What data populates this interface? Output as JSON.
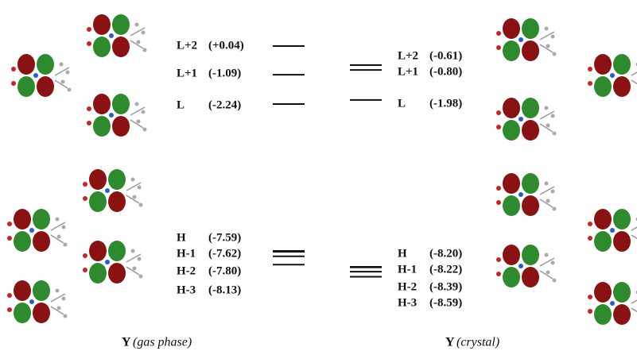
{
  "panels": [
    {
      "caption": {
        "symbol": "Y",
        "phase": "(gas phase)"
      },
      "lumo": [
        {
          "label": "L+2",
          "energy": 0.04,
          "energy_label": "(+0.04)"
        },
        {
          "label": "L+1",
          "energy": -1.09,
          "energy_label": "(-1.09)"
        },
        {
          "label": "L",
          "energy": -2.24,
          "energy_label": "(-2.24)"
        }
      ],
      "homo": [
        {
          "label": "H",
          "energy": -7.59,
          "energy_label": "(-7.59)"
        },
        {
          "label": "H-1",
          "energy": -7.62,
          "energy_label": "(-7.62)"
        },
        {
          "label": "H-2",
          "energy": -7.8,
          "energy_label": "(-7.80)"
        },
        {
          "label": "H-3",
          "energy": -8.13,
          "energy_label": "(-8.13)"
        }
      ]
    },
    {
      "caption": {
        "symbol": "Y",
        "phase": "(crystal)"
      },
      "lumo": [
        {
          "label": "L+2",
          "energy": -0.61,
          "energy_label": "(-0.61)"
        },
        {
          "label": "L+1",
          "energy": -0.8,
          "energy_label": "(-0.80)"
        },
        {
          "label": "L",
          "energy": -1.98,
          "energy_label": "(-1.98)"
        }
      ],
      "homo": [
        {
          "label": "H",
          "energy": -8.2,
          "energy_label": "(-8.20)"
        },
        {
          "label": "H-1",
          "energy": -8.22,
          "energy_label": "(-8.22)"
        },
        {
          "label": "H-2",
          "energy": -8.39,
          "energy_label": "(-8.39)"
        },
        {
          "label": "H-3",
          "energy": -8.59,
          "energy_label": "(-8.59)"
        }
      ]
    }
  ]
}
